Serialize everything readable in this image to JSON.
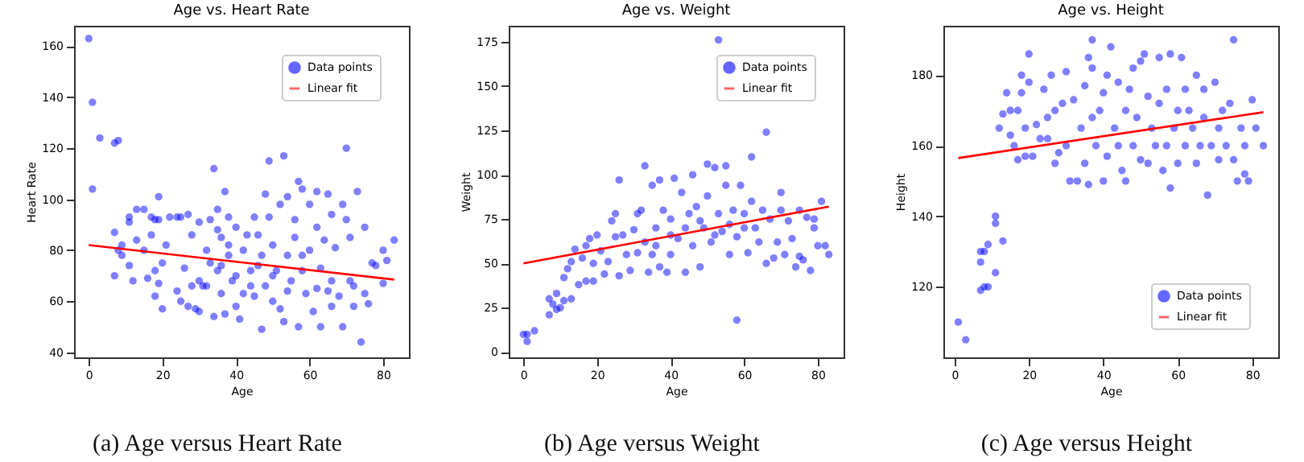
{
  "chart_data": [
    {
      "type": "scatter",
      "title": "Age vs. Heart Rate",
      "xlabel": "Age",
      "ylabel": "Heart Rate",
      "xlim": [
        -4,
        87
      ],
      "ylim": [
        38,
        168
      ],
      "xticks": [
        0,
        20,
        40,
        60,
        80
      ],
      "yticks": [
        40,
        60,
        80,
        100,
        120,
        140,
        160
      ],
      "legend": "top right",
      "annotations": [
        "(a) Age versus Heart Rate"
      ],
      "series": [
        {
          "name": "Data points",
          "marker": "circle",
          "color": "#0000ff",
          "x": [
            0,
            1,
            3,
            1,
            7,
            8,
            7,
            7,
            8,
            9,
            9,
            11,
            11,
            11,
            12,
            13,
            13,
            15,
            15,
            16,
            17,
            17,
            18,
            18,
            18,
            19,
            19,
            19,
            20,
            20,
            21,
            22,
            24,
            24,
            25,
            25,
            26,
            27,
            27,
            28,
            28,
            29,
            30,
            30,
            31,
            32,
            33,
            33,
            34,
            34,
            35,
            35,
            35,
            36,
            36,
            37,
            37,
            38,
            38,
            39,
            40,
            40,
            41,
            42,
            42,
            43,
            44,
            45,
            45,
            46,
            47,
            47,
            48,
            48,
            49,
            49,
            50,
            50,
            51,
            52,
            52,
            53,
            53,
            54,
            54,
            55,
            56,
            56,
            57,
            57,
            58,
            58,
            59,
            60,
            60,
            61,
            62,
            62,
            63,
            63,
            64,
            65,
            65,
            66,
            66,
            67,
            68,
            69,
            69,
            70,
            70,
            71,
            71,
            72,
            72,
            73,
            74,
            75,
            75,
            76,
            77,
            78,
            80,
            80,
            81,
            83,
            30,
            32,
            36,
            38,
            40,
            44,
            46,
            50,
            54,
            58,
            62,
            66
          ],
          "values": [
            163,
            138,
            124,
            104,
            122,
            123,
            87,
            70,
            80,
            82,
            78,
            93,
            91,
            74,
            68,
            96,
            84,
            96,
            80,
            69,
            93,
            86,
            92,
            72,
            62,
            101,
            92,
            67,
            57,
            75,
            82,
            93,
            93,
            64,
            93,
            60,
            73,
            94,
            58,
            86,
            66,
            57,
            91,
            56,
            66,
            80,
            92,
            75,
            112,
            54,
            96,
            88,
            72,
            85,
            63,
            103,
            55,
            93,
            78,
            68,
            89,
            58,
            53,
            80,
            63,
            86,
            72,
            93,
            62,
            86,
            49,
            78,
            102,
            66,
            115,
            93,
            82,
            60,
            72,
            98,
            57,
            117,
            52,
            101,
            78,
            68,
            92,
            85,
            107,
            50,
            104,
            72,
            63,
            98,
            80,
            56,
            103,
            89,
            50,
            73,
            84,
            102,
            64,
            94,
            58,
            81,
            62,
            98,
            50,
            120,
            92,
            85,
            68,
            58,
            66,
            103,
            44,
            89,
            63,
            59,
            75,
            74,
            80,
            67,
            76,
            84,
            68,
            66,
            74,
            82,
            70,
            66,
            74,
            70,
            64,
            78,
            65,
            68
          ]
        },
        {
          "name": "Linear fit",
          "type": "line",
          "color": "#ff0000",
          "x": [
            0,
            83
          ],
          "values": [
            82,
            68.5
          ]
        }
      ]
    },
    {
      "type": "scatter",
      "title": "Age vs. Weight",
      "xlabel": "Age",
      "ylabel": "Weight",
      "xlim": [
        -4,
        87
      ],
      "ylim": [
        -3,
        184
      ],
      "xticks": [
        0,
        20,
        40,
        60,
        80
      ],
      "yticks": [
        0,
        25,
        50,
        75,
        100,
        125,
        150,
        175
      ],
      "legend": "top right",
      "annotations": [
        "(b) Age versus Weight"
      ],
      "series": [
        {
          "name": "Data points",
          "marker": "circle",
          "color": "#0000ff",
          "x": [
            0,
            1,
            1,
            3,
            7,
            7,
            8,
            9,
            9,
            10,
            11,
            11,
            12,
            13,
            13,
            14,
            15,
            16,
            17,
            17,
            18,
            19,
            19,
            20,
            21,
            22,
            23,
            24,
            25,
            25,
            26,
            26,
            27,
            28,
            29,
            30,
            31,
            31,
            32,
            33,
            33,
            34,
            35,
            35,
            36,
            37,
            37,
            38,
            39,
            40,
            40,
            41,
            42,
            43,
            44,
            45,
            46,
            46,
            47,
            48,
            49,
            50,
            50,
            51,
            52,
            53,
            53,
            54,
            55,
            55,
            56,
            57,
            58,
            58,
            59,
            60,
            61,
            62,
            62,
            63,
            64,
            65,
            66,
            66,
            67,
            68,
            69,
            70,
            70,
            71,
            72,
            73,
            74,
            75,
            75,
            76,
            77,
            78,
            79,
            80,
            81,
            82,
            83,
            79,
            36,
            40,
            44,
            48,
            52,
            56,
            60
          ],
          "values": [
            10,
            10,
            6,
            12,
            21,
            30,
            27,
            24,
            33,
            25,
            29,
            42,
            47,
            51,
            30,
            58,
            38,
            53,
            60,
            40,
            64,
            40,
            50,
            66,
            57,
            44,
            51,
            74,
            65,
            78,
            97,
            43,
            66,
            55,
            46,
            69,
            78,
            56,
            80,
            105,
            62,
            45,
            94,
            55,
            70,
            97,
            48,
            80,
            45,
            75,
            55,
            98,
            64,
            90,
            45,
            78,
            100,
            60,
            82,
            48,
            70,
            106,
            88,
            62,
            104,
            176,
            78,
            68,
            105,
            94,
            55,
            80,
            18,
            65,
            94,
            78,
            56,
            110,
            85,
            70,
            62,
            80,
            124,
            50,
            75,
            53,
            62,
            90,
            80,
            55,
            74,
            64,
            48,
            80,
            54,
            52,
            76,
            46,
            70,
            60,
            85,
            60,
            55,
            75,
            60,
            66,
            70,
            74,
            66,
            72,
            70
          ]
        },
        {
          "name": "Linear fit",
          "type": "line",
          "color": "#ff0000",
          "x": [
            0,
            83
          ],
          "values": [
            50,
            82
          ]
        }
      ]
    },
    {
      "type": "scatter",
      "title": "Age vs. Height",
      "xlabel": "Age",
      "ylabel": "Height",
      "xlim": [
        -3,
        87
      ],
      "ylim": [
        100,
        194
      ],
      "xticks": [
        0,
        20,
        40,
        60,
        80
      ],
      "yticks": [
        120,
        140,
        160,
        180
      ],
      "legend": "bottom right",
      "annotations": [
        "(c) Age versus Height"
      ],
      "series": [
        {
          "name": "Data points",
          "marker": "circle",
          "color": "#0000ff",
          "x": [
            1,
            3,
            7,
            7,
            7,
            8,
            8,
            9,
            9,
            11,
            11,
            11,
            13,
            12,
            13,
            14,
            15,
            15,
            16,
            17,
            17,
            18,
            18,
            19,
            19,
            20,
            20,
            21,
            22,
            23,
            24,
            25,
            25,
            26,
            27,
            27,
            28,
            29,
            30,
            30,
            31,
            32,
            33,
            34,
            35,
            35,
            36,
            36,
            37,
            37,
            37,
            38,
            39,
            40,
            40,
            41,
            41,
            42,
            43,
            44,
            44,
            45,
            46,
            46,
            47,
            48,
            48,
            49,
            50,
            50,
            51,
            52,
            52,
            53,
            54,
            55,
            55,
            56,
            57,
            57,
            58,
            58,
            59,
            60,
            60,
            61,
            62,
            62,
            63,
            64,
            65,
            65,
            66,
            67,
            67,
            68,
            69,
            70,
            71,
            71,
            72,
            73,
            74,
            75,
            75,
            76,
            77,
            78,
            78,
            79,
            80,
            81,
            83
          ],
          "values": [
            110,
            105,
            119,
            127,
            130,
            120,
            130,
            120,
            132,
            140,
            138,
            124,
            133,
            165,
            169,
            175,
            163,
            170,
            160,
            156,
            170,
            175,
            180,
            165,
            157,
            186,
            178,
            157,
            166,
            162,
            176,
            168,
            162,
            180,
            155,
            170,
            158,
            172,
            181,
            160,
            150,
            173,
            150,
            165,
            177,
            155,
            185,
            149,
            190,
            182,
            168,
            160,
            170,
            175,
            150,
            180,
            157,
            188,
            165,
            178,
            160,
            153,
            170,
            150,
            176,
            182,
            160,
            168,
            184,
            156,
            186,
            174,
            155,
            165,
            160,
            185,
            172,
            153,
            176,
            160,
            186,
            148,
            165,
            170,
            155,
            185,
            176,
            160,
            170,
            165,
            180,
            155,
            160,
            168,
            176,
            146,
            160,
            178,
            165,
            156,
            170,
            160,
            172,
            190,
            156,
            150,
            165,
            152,
            160,
            150,
            173,
            165,
            160
          ]
        },
        {
          "name": "Linear fit",
          "type": "line",
          "color": "#ff0000",
          "x": [
            1,
            83
          ],
          "values": [
            156.5,
            169.5
          ]
        }
      ]
    }
  ]
}
